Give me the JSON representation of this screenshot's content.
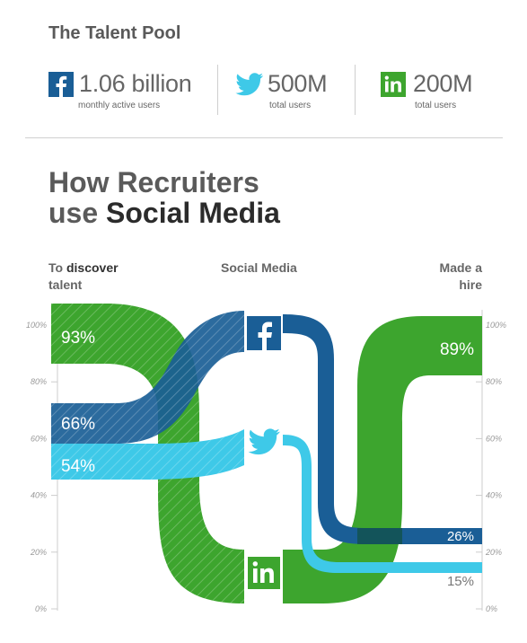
{
  "header": {
    "title": "The Talent Pool"
  },
  "stats": [
    {
      "network": "Facebook",
      "icon": "facebook-icon",
      "value": "1.06 billion",
      "caption": "monthly active users",
      "color": "#1a5e96"
    },
    {
      "network": "Twitter",
      "icon": "twitter-icon",
      "value": "500M",
      "caption": "total users",
      "color": "#3ec9e8"
    },
    {
      "network": "LinkedIn",
      "icon": "linkedin-icon",
      "value": "200M",
      "caption": "total users",
      "color": "#3da52e"
    }
  ],
  "headline": {
    "line1": "How Recruiters",
    "line2_prefix": "use ",
    "line2_strong": "Social Media"
  },
  "columns": {
    "left_prefix": "To ",
    "left_bold": "discover",
    "left_line2": "talent",
    "middle": "Social Media",
    "right_line1": "Made a",
    "right_line2": "hire"
  },
  "chart_data": {
    "type": "flow",
    "title": "How Recruiters use Social Media",
    "ylim": [
      0,
      100
    ],
    "y_ticks": [
      "100%",
      "80%",
      "60%",
      "40%",
      "20%",
      "0%"
    ],
    "categories": [
      "To discover talent",
      "Made a hire"
    ],
    "series": [
      {
        "name": "Facebook",
        "color": "#1a5e96",
        "values": [
          66,
          26
        ],
        "labels": [
          "66%",
          "26%"
        ]
      },
      {
        "name": "Twitter",
        "color": "#3ec9e8",
        "values": [
          54,
          15
        ],
        "labels": [
          "54%",
          "15%"
        ]
      },
      {
        "name": "LinkedIn",
        "color": "#3da52e",
        "values": [
          93,
          89
        ],
        "labels": [
          "93%",
          "89%"
        ]
      }
    ]
  }
}
